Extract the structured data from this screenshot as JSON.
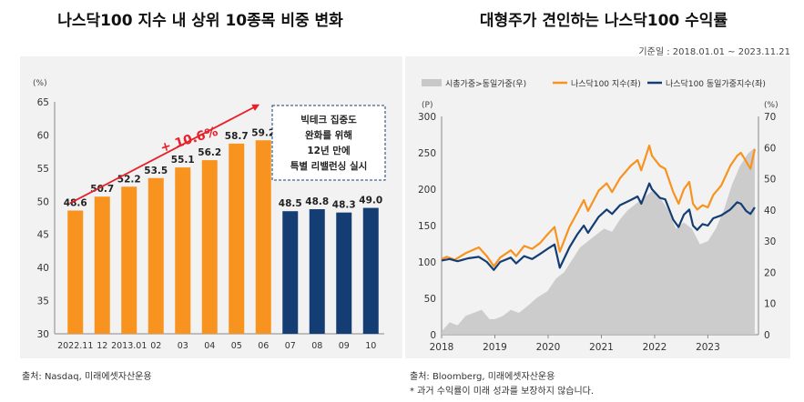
{
  "left_title": "나스닥100 지수 내 상위 10종목 비중 변화",
  "right_title": "대형주가 견인하는 나스닥100 수익률",
  "base_date": "기준일 : 2018.01.01 ~ 2023.11.21",
  "left_source": "출처: Nasdaq, 미래에셋자산운용",
  "right_source": "출처: Bloomberg, 미래에셋자산운용",
  "right_note": "* 과거 수익률이 미래 성과를 보장하지 않습니다.",
  "colors": {
    "orange": "#f7931e",
    "navy": "#143d73",
    "gray": "#c8c8c8",
    "red": "#e8202a",
    "panel": "#f2f2f2"
  },
  "chart_data": [
    {
      "type": "bar",
      "ylabel": "(%)",
      "ylim": [
        30,
        65
      ],
      "yticks": [
        "30",
        "35",
        "40",
        "45",
        "50",
        "55",
        "60",
        "65"
      ],
      "categories": [
        "2022.11",
        "12",
        "2013.01",
        "02",
        "03",
        "04",
        "05",
        "06",
        "07",
        "08",
        "09",
        "10"
      ],
      "values": [
        48.6,
        50.7,
        52.2,
        53.5,
        55.1,
        56.2,
        58.7,
        59.2,
        48.5,
        48.8,
        48.3,
        49.0
      ],
      "value_labels": [
        "48.6",
        "50.7",
        "52.2",
        "53.5",
        "55.1",
        "56.2",
        "58.7",
        "59.2",
        "48.5",
        "48.8",
        "48.3",
        "49.0"
      ],
      "bar_colors": [
        "orange",
        "orange",
        "orange",
        "orange",
        "orange",
        "orange",
        "orange",
        "orange",
        "navy",
        "navy",
        "navy",
        "navy"
      ],
      "arrow_label": "+ 10.6%",
      "annotation": [
        "빅테크 집중도",
        "완화를 위해",
        "12년 만에",
        "특별 리밸런싱 실시"
      ]
    },
    {
      "type": "line",
      "legend": [
        "시총가중>동일가중(우)",
        "나스닥100 지수(좌)",
        "나스닥100 동일가중지수(좌)"
      ],
      "left_axis_label": "(P)",
      "right_axis_label": "(%)",
      "ylim_left": [
        0,
        300
      ],
      "ylim_right": [
        0,
        70
      ],
      "yticks_left": [
        "0",
        "50",
        "100",
        "150",
        "200",
        "250",
        "300"
      ],
      "yticks_right": [
        "0",
        "10",
        "20",
        "30",
        "40",
        "50",
        "60",
        "70"
      ],
      "xlim": [
        2018,
        2023.95
      ],
      "xticks": [
        "2018",
        "2019",
        "2020",
        "2021",
        "2022",
        "2023"
      ],
      "series": [
        {
          "name": "나스닥100 지수(좌)",
          "color": "orange",
          "points": [
            [
              2018.0,
              104
            ],
            [
              2018.1,
              107
            ],
            [
              2018.25,
              103
            ],
            [
              2018.45,
              112
            ],
            [
              2018.7,
              120
            ],
            [
              2018.85,
              108
            ],
            [
              2018.98,
              94
            ],
            [
              2019.1,
              106
            ],
            [
              2019.3,
              116
            ],
            [
              2019.4,
              108
            ],
            [
              2019.55,
              122
            ],
            [
              2019.7,
              118
            ],
            [
              2019.85,
              126
            ],
            [
              2019.99,
              138
            ],
            [
              2020.12,
              148
            ],
            [
              2020.22,
              114
            ],
            [
              2020.4,
              148
            ],
            [
              2020.55,
              168
            ],
            [
              2020.67,
              185
            ],
            [
              2020.75,
              170
            ],
            [
              2020.95,
              198
            ],
            [
              2021.1,
              208
            ],
            [
              2021.2,
              196
            ],
            [
              2021.35,
              215
            ],
            [
              2021.55,
              232
            ],
            [
              2021.68,
              240
            ],
            [
              2021.75,
              226
            ],
            [
              2021.9,
              260
            ],
            [
              2021.95,
              246
            ],
            [
              2022.1,
              232
            ],
            [
              2022.2,
              228
            ],
            [
              2022.35,
              196
            ],
            [
              2022.45,
              180
            ],
            [
              2022.55,
              200
            ],
            [
              2022.65,
              210
            ],
            [
              2022.72,
              180
            ],
            [
              2022.8,
              172
            ],
            [
              2022.9,
              178
            ],
            [
              2023.0,
              175
            ],
            [
              2023.1,
              192
            ],
            [
              2023.25,
              205
            ],
            [
              2023.42,
              232
            ],
            [
              2023.55,
              246
            ],
            [
              2023.62,
              250
            ],
            [
              2023.72,
              238
            ],
            [
              2023.8,
              228
            ],
            [
              2023.88,
              255
            ]
          ]
        },
        {
          "name": "나스닥100 동일가중지수(좌)",
          "color": "navy",
          "points": [
            [
              2018.0,
              102
            ],
            [
              2018.15,
              104
            ],
            [
              2018.3,
              101
            ],
            [
              2018.5,
              105
            ],
            [
              2018.7,
              107
            ],
            [
              2018.85,
              100
            ],
            [
              2018.98,
              89
            ],
            [
              2019.1,
              100
            ],
            [
              2019.3,
              106
            ],
            [
              2019.4,
              98
            ],
            [
              2019.55,
              108
            ],
            [
              2019.7,
              104
            ],
            [
              2019.85,
              111
            ],
            [
              2019.99,
              118
            ],
            [
              2020.12,
              124
            ],
            [
              2020.22,
              92
            ],
            [
              2020.4,
              120
            ],
            [
              2020.55,
              138
            ],
            [
              2020.67,
              150
            ],
            [
              2020.75,
              140
            ],
            [
              2020.95,
              162
            ],
            [
              2021.1,
              172
            ],
            [
              2021.2,
              166
            ],
            [
              2021.35,
              178
            ],
            [
              2021.55,
              185
            ],
            [
              2021.68,
              190
            ],
            [
              2021.75,
              180
            ],
            [
              2021.9,
              208
            ],
            [
              2021.95,
              200
            ],
            [
              2022.1,
              188
            ],
            [
              2022.2,
              186
            ],
            [
              2022.35,
              158
            ],
            [
              2022.45,
              148
            ],
            [
              2022.55,
              165
            ],
            [
              2022.65,
              172
            ],
            [
              2022.72,
              150
            ],
            [
              2022.8,
              144
            ],
            [
              2022.9,
              152
            ],
            [
              2023.0,
              150
            ],
            [
              2023.1,
              160
            ],
            [
              2023.25,
              164
            ],
            [
              2023.42,
              172
            ],
            [
              2023.55,
              182
            ],
            [
              2023.62,
              180
            ],
            [
              2023.72,
              170
            ],
            [
              2023.8,
              166
            ],
            [
              2023.88,
              175
            ]
          ]
        },
        {
          "name": "시총가중>동일가중(우)",
          "color": "gray",
          "type": "area",
          "points": [
            [
              2018.0,
              1
            ],
            [
              2018.15,
              4
            ],
            [
              2018.3,
              3
            ],
            [
              2018.45,
              6
            ],
            [
              2018.6,
              7
            ],
            [
              2018.75,
              8
            ],
            [
              2018.9,
              5
            ],
            [
              2019.0,
              5
            ],
            [
              2019.15,
              6
            ],
            [
              2019.3,
              8
            ],
            [
              2019.45,
              7
            ],
            [
              2019.6,
              9
            ],
            [
              2019.8,
              12
            ],
            [
              2019.99,
              14
            ],
            [
              2020.15,
              18
            ],
            [
              2020.3,
              20
            ],
            [
              2020.45,
              24
            ],
            [
              2020.6,
              28
            ],
            [
              2020.75,
              30
            ],
            [
              2020.9,
              32
            ],
            [
              2021.05,
              34
            ],
            [
              2021.2,
              33
            ],
            [
              2021.35,
              37
            ],
            [
              2021.5,
              40
            ],
            [
              2021.65,
              42
            ],
            [
              2021.8,
              44
            ],
            [
              2021.95,
              46
            ],
            [
              2022.1,
              44
            ],
            [
              2022.25,
              40
            ],
            [
              2022.4,
              34
            ],
            [
              2022.55,
              36
            ],
            [
              2022.7,
              34
            ],
            [
              2022.85,
              29
            ],
            [
              2023.0,
              30
            ],
            [
              2023.15,
              34
            ],
            [
              2023.3,
              40
            ],
            [
              2023.45,
              48
            ],
            [
              2023.6,
              54
            ],
            [
              2023.75,
              58
            ],
            [
              2023.88,
              60
            ]
          ]
        }
      ]
    }
  ]
}
